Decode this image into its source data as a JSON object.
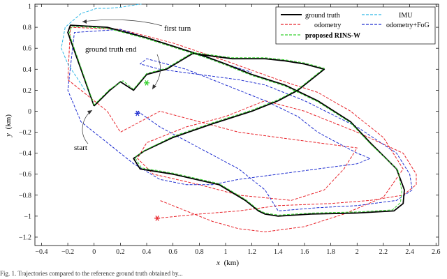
{
  "chart_data": {
    "type": "line",
    "xlabel": "x",
    "xunit": "(km)",
    "ylabel": "y",
    "yunit": "(km)",
    "xlim": [
      -0.45,
      2.62
    ],
    "ylim": [
      -1.28,
      1.02
    ],
    "xticks": [
      -0.4,
      -0.2,
      0,
      0.2,
      0.4,
      0.6,
      0.8,
      1,
      1.2,
      1.4,
      1.6,
      1.8,
      2,
      2.2,
      2.4,
      2.6
    ],
    "xtick_labels": [
      "−0.4",
      "−0.2",
      "0",
      "0.2",
      "0.4",
      "0.6",
      "0.8",
      "1",
      "1.2",
      "1.4",
      "1.6",
      "1.8",
      "2",
      "2.2",
      "2.4",
      "2.6"
    ],
    "yticks": [
      1,
      0.8,
      0.6,
      0.4,
      0.2,
      0,
      -0.2,
      -0.4,
      -0.6,
      -0.8,
      -1,
      -1.2
    ],
    "ytick_labels": [
      "1",
      "0.8",
      "0.6",
      "0.4",
      "0.2",
      "0",
      "−0.2",
      "−0.4",
      "−0.6",
      "−0.8",
      "−1",
      "−1.2"
    ],
    "grid": false,
    "legend_position": "top-right",
    "series": [
      {
        "name": "ground truth",
        "color": "#000000",
        "style": "solid",
        "x": [
          0.0,
          -0.2,
          -0.18,
          0.1,
          0.4,
          0.85,
          1.0,
          1.2,
          1.45,
          1.7,
          1.95,
          2.1,
          2.3,
          2.36,
          2.35,
          2.28,
          2.0,
          1.65,
          1.4,
          1.3,
          1.25,
          1.15,
          0.95,
          0.6,
          0.35,
          0.3,
          0.38,
          0.6,
          0.9,
          1.2,
          1.4,
          1.55,
          1.65,
          1.75,
          1.6,
          1.45,
          1.3,
          1.05,
          0.75,
          0.55,
          0.4,
          0.3,
          0.2,
          0.12,
          0.0
        ],
        "y": [
          0.05,
          0.75,
          0.82,
          0.8,
          0.7,
          0.52,
          0.45,
          0.35,
          0.25,
          0.1,
          -0.1,
          -0.3,
          -0.55,
          -0.75,
          -0.88,
          -0.95,
          -0.97,
          -0.98,
          -1.0,
          -0.98,
          -0.95,
          -0.85,
          -0.7,
          -0.6,
          -0.55,
          -0.45,
          -0.38,
          -0.25,
          -0.12,
          0.0,
          0.1,
          0.2,
          0.3,
          0.4,
          0.45,
          0.48,
          0.5,
          0.5,
          0.55,
          0.4,
          0.35,
          0.2,
          0.28,
          0.2,
          0.05
        ]
      },
      {
        "name": "odometry",
        "color": "#e8232a",
        "style": "dashed",
        "x": [
          0.48,
          0.8,
          1.1,
          1.4,
          1.8,
          2.1,
          2.35,
          2.45,
          2.45,
          2.35,
          2.0,
          1.6,
          1.3,
          1.2,
          1.0,
          0.7,
          0.4,
          0.33,
          0.45,
          0.8,
          1.1,
          1.5,
          1.75,
          1.9,
          2.0,
          1.7,
          1.4,
          1.1,
          0.8,
          0.5,
          0.35,
          0.2,
          0.1,
          0.0,
          -0.2,
          -0.18,
          0.2,
          0.6,
          1.0,
          1.4,
          1.7,
          1.95,
          2.2,
          2.35,
          2.2,
          1.9,
          1.6,
          1.3,
          1.1,
          0.9,
          0.7,
          0.5
        ],
        "y": [
          -1.02,
          -0.98,
          -0.95,
          -0.9,
          -0.88,
          -0.85,
          -0.8,
          -0.7,
          -0.6,
          -0.4,
          -0.2,
          0.0,
          0.1,
          0.05,
          -0.05,
          -0.15,
          -0.3,
          -0.45,
          -0.6,
          -0.7,
          -0.8,
          -0.85,
          -0.75,
          -0.55,
          -0.35,
          -0.3,
          -0.25,
          -0.2,
          -0.1,
          0.0,
          -0.1,
          -0.2,
          0.0,
          0.1,
          0.3,
          0.8,
          0.78,
          0.65,
          0.48,
          0.3,
          0.18,
          0.0,
          -0.25,
          -0.55,
          -0.82,
          -0.98,
          -1.1,
          -1.15,
          -1.12,
          -1.05,
          -0.95,
          -0.85
        ]
      },
      {
        "name": "IMU",
        "color": "#2eb7e6",
        "style": "dashed",
        "x": [
          -0.07,
          -0.12,
          -0.2,
          -0.25,
          -0.22,
          -0.1,
          0.02,
          0.1,
          0.2,
          0.25,
          0.3,
          0.34,
          0.36
        ],
        "y": [
          0.2,
          0.3,
          0.45,
          0.6,
          0.8,
          0.93,
          0.98,
          0.98,
          0.99,
          1.0,
          1.01,
          1.02,
          1.02
        ]
      },
      {
        "name": "odometry+FoG",
        "color": "#1f2ed0",
        "style": "dashed",
        "x": [
          0.33,
          0.5,
          0.8,
          1.1,
          1.3,
          1.4,
          1.7,
          2.0,
          2.3,
          2.42,
          2.4,
          2.3,
          2.0,
          1.6,
          1.3,
          1.1,
          0.8,
          0.5,
          0.35,
          0.4,
          0.7,
          1.0,
          1.3,
          1.55,
          1.7,
          1.85,
          2.0,
          2.1,
          2.0,
          1.7,
          1.4,
          1.1,
          0.9,
          0.7,
          0.5,
          0.3,
          0.1,
          -0.1,
          -0.2,
          -0.15,
          0.2,
          0.6,
          1.0,
          1.2
        ],
        "y": [
          0.0,
          -0.15,
          -0.35,
          -0.55,
          -0.75,
          -0.95,
          -0.92,
          -0.9,
          -0.85,
          -0.75,
          -0.6,
          -0.4,
          -0.15,
          0.1,
          0.25,
          0.3,
          0.35,
          0.4,
          0.45,
          0.5,
          0.4,
          0.25,
          0.1,
          -0.05,
          -0.2,
          -0.3,
          -0.4,
          -0.45,
          -0.5,
          -0.55,
          -0.6,
          -0.65,
          -0.7,
          -0.7,
          -0.65,
          -0.5,
          -0.3,
          -0.1,
          0.2,
          0.75,
          0.78,
          0.62,
          0.45,
          0.37
        ]
      },
      {
        "name": "proposed RINS-W",
        "color": "#33d12c",
        "style": "dashed",
        "x": [
          0.0,
          -0.19,
          -0.17,
          0.1,
          0.4,
          0.85,
          1.0,
          1.2,
          1.45,
          1.7,
          1.95,
          2.1,
          2.31,
          2.34,
          2.33,
          2.27,
          2.0,
          1.65,
          1.4,
          1.3,
          1.25,
          1.15,
          0.95,
          0.6,
          0.36,
          0.31,
          0.39,
          0.6,
          0.9,
          1.2,
          1.4,
          1.55,
          1.65,
          1.75,
          1.6,
          1.45,
          1.3,
          1.05,
          0.75,
          0.55,
          0.4,
          0.3,
          0.22,
          0.12,
          0.0
        ],
        "y": [
          0.06,
          0.74,
          0.81,
          0.79,
          0.69,
          0.51,
          0.44,
          0.34,
          0.24,
          0.09,
          -0.11,
          -0.31,
          -0.56,
          -0.76,
          -0.87,
          -0.94,
          -0.96,
          -0.97,
          -0.99,
          -0.97,
          -0.94,
          -0.84,
          -0.69,
          -0.59,
          -0.54,
          -0.44,
          -0.37,
          -0.24,
          -0.11,
          0.01,
          0.11,
          0.21,
          0.31,
          0.41,
          0.46,
          0.49,
          0.51,
          0.51,
          0.56,
          0.41,
          0.36,
          0.21,
          0.29,
          0.21,
          0.06
        ]
      }
    ],
    "markers": [
      {
        "series": "proposed RINS-W",
        "x": 0.4,
        "y": 0.27,
        "color": "#33d12c"
      },
      {
        "series": "odometry+FoG",
        "x": 0.33,
        "y": -0.02,
        "color": "#1f2ed0"
      },
      {
        "series": "odometry",
        "x": 0.48,
        "y": -1.02,
        "color": "#e8232a"
      }
    ],
    "annotations": [
      {
        "text": "first turn"
      },
      {
        "text": "ground truth end"
      },
      {
        "text": "start"
      }
    ]
  },
  "caption": "Fig. 1. Trajectories compared to the reference ground truth obtained by...",
  "legend_entries": [
    "ground truth",
    "IMU",
    "odometry",
    "odometry+FoG",
    "proposed RINS-W"
  ]
}
